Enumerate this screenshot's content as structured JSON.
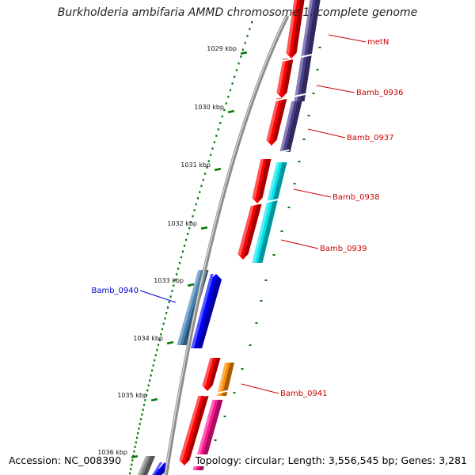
{
  "title": "Burkholderia ambifaria AMMD chromosome 1, complete genome",
  "footer": {
    "accession": "Accession: NC_008390",
    "info": "Topology: circular; Length: 3,556,545 bp; Genes: 3,281"
  },
  "ticks": [
    {
      "label": "1029 kbp"
    },
    {
      "label": "1030 kbp"
    },
    {
      "label": "1031 kbp"
    },
    {
      "label": "1032 kbp"
    },
    {
      "label": "1033 kbp"
    },
    {
      "label": "1034 kbp"
    },
    {
      "label": "1035 kbp"
    },
    {
      "label": "1036 kbp"
    }
  ],
  "gene_labels": [
    {
      "name": "metN",
      "color": "#cc0000"
    },
    {
      "name": "Bamb_0936",
      "color": "#cc0000"
    },
    {
      "name": "Bamb_0937",
      "color": "#cc0000"
    },
    {
      "name": "Bamb_0938",
      "color": "#cc0000"
    },
    {
      "name": "Bamb_0939",
      "color": "#cc0000"
    },
    {
      "name": "Bamb_0940",
      "color": "#0000cc"
    },
    {
      "name": "Bamb_0941",
      "color": "#cc0000"
    }
  ],
  "feature_colors": {
    "cds_track": "#ff0000",
    "gene_metN": "#4b3f8f",
    "gene_0938_0939": "#00e5ee",
    "gene_0940_a": "#4682b4",
    "gene_0940_b": "#0000ff",
    "gene_0941": "#ff8c00",
    "gene_pink": "#ff1493",
    "gene_grey": "#7f7f7f",
    "backbone": "#8c8c8c",
    "tick": "#0a7a0a"
  }
}
